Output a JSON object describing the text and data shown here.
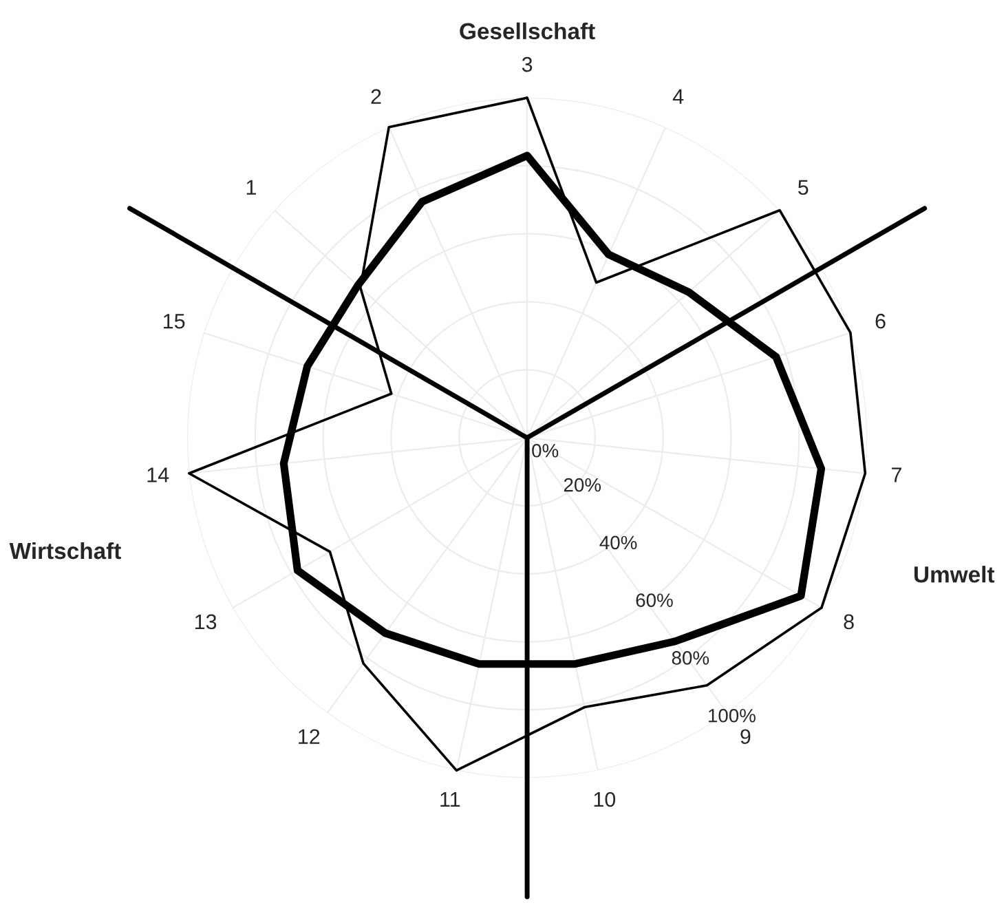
{
  "chart_data": {
    "type": "radar",
    "categories": [
      "3",
      "4",
      "5",
      "6",
      "7",
      "8",
      "9",
      "10",
      "11",
      "12",
      "13",
      "14",
      "15",
      "1",
      "2"
    ],
    "series": [
      {
        "color": "#000000",
        "values": [
          100,
          50,
          100,
          100,
          100,
          100,
          90,
          81,
          100,
          82,
          67,
          100,
          42,
          66,
          100
        ]
      },
      {
        "color": "#000000",
        "values": [
          83,
          59,
          64,
          77,
          87,
          93,
          74,
          68,
          68,
          71,
          78,
          72,
          68,
          67,
          76
        ]
      }
    ],
    "ylim": [
      0,
      100
    ],
    "yticks": [
      {
        "value": 0,
        "label": "0%"
      },
      {
        "value": 20,
        "label": "20%"
      },
      {
        "value": 40,
        "label": "40%"
      },
      {
        "value": 60,
        "label": "60%"
      },
      {
        "value": 80,
        "label": "80%"
      },
      {
        "value": 100,
        "label": "100%"
      }
    ],
    "grid": true,
    "annotations": [
      "Gesellschaft",
      "Umwelt",
      "Wirtschaft"
    ]
  }
}
